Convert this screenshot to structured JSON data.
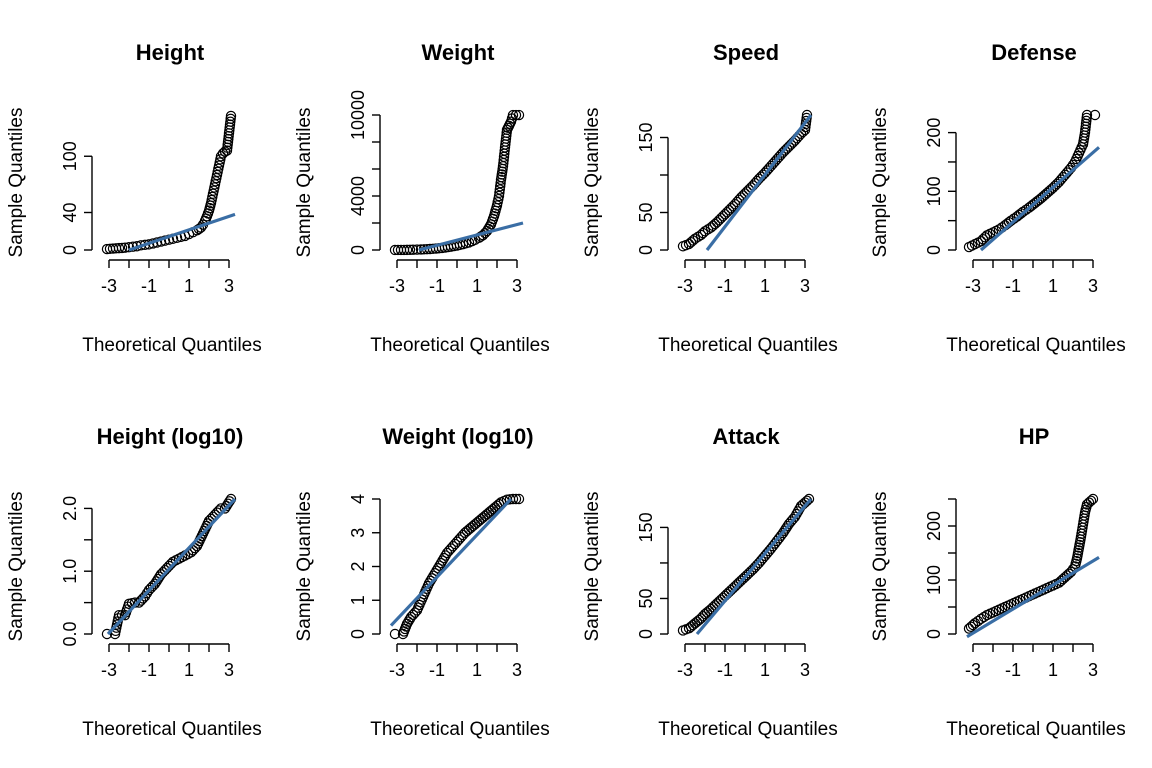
{
  "chart_data": [
    {
      "type": "scatter",
      "title": "Height",
      "xlabel": "Theoretical Quantiles",
      "ylabel": "Sample Quantiles",
      "xlim": [
        -3.2,
        3.3
      ],
      "ylim": [
        0,
        144
      ],
      "yticks": [
        0,
        40,
        100
      ],
      "ytick_labels": [
        "0",
        "40",
        "100"
      ],
      "xticks": [
        -3,
        -2,
        -1,
        0,
        1,
        2,
        3
      ],
      "xtick_labels": [
        "-3",
        "",
        "-1",
        "",
        "1",
        "",
        "3"
      ],
      "ref_line": [
        [
          -2.0,
          0
        ],
        [
          3.3,
          38
        ]
      ],
      "qq_points": [
        [
          -3.1,
          1
        ],
        [
          -2.8,
          1.5
        ],
        [
          -2.5,
          2
        ],
        [
          -2.2,
          2.5
        ],
        [
          -2.0,
          3
        ],
        [
          -1.8,
          3.5
        ],
        [
          -1.6,
          4
        ],
        [
          -1.4,
          5
        ],
        [
          -1.2,
          5.5
        ],
        [
          -1.0,
          6
        ],
        [
          -0.8,
          7
        ],
        [
          -0.6,
          8
        ],
        [
          -0.4,
          9
        ],
        [
          -0.2,
          10
        ],
        [
          0,
          11
        ],
        [
          0.2,
          12
        ],
        [
          0.4,
          13
        ],
        [
          0.6,
          14
        ],
        [
          0.8,
          15
        ],
        [
          1.0,
          17
        ],
        [
          1.2,
          19
        ],
        [
          1.4,
          21
        ],
        [
          1.6,
          24
        ],
        [
          1.7,
          27
        ],
        [
          1.8,
          31
        ],
        [
          1.9,
          36
        ],
        [
          2.0,
          42
        ],
        [
          2.1,
          50
        ],
        [
          2.2,
          60
        ],
        [
          2.3,
          70
        ],
        [
          2.4,
          80
        ],
        [
          2.5,
          90
        ],
        [
          2.6,
          100
        ],
        [
          2.7,
          103
        ],
        [
          2.8,
          105
        ],
        [
          2.9,
          106
        ],
        [
          3.1,
          143
        ]
      ]
    },
    {
      "type": "scatter",
      "title": "Weight",
      "xlabel": "Theoretical Quantiles",
      "ylabel": "Sample Quantiles",
      "xlim": [
        -3.2,
        3.3
      ],
      "ylim": [
        0,
        10000
      ],
      "yticks": [
        0,
        2000,
        4000,
        6000,
        8000,
        10000
      ],
      "ytick_labels": [
        "0",
        "",
        "4000",
        "",
        "",
        "10000"
      ],
      "xticks": [
        -3,
        -2,
        -1,
        0,
        1,
        2,
        3
      ],
      "xtick_labels": [
        "-3",
        "",
        "-1",
        "",
        "1",
        "",
        "3"
      ],
      "ref_line": [
        [
          -1.9,
          0
        ],
        [
          3.3,
          2000
        ]
      ],
      "qq_points": [
        [
          -3.1,
          1
        ],
        [
          -2.8,
          5
        ],
        [
          -2.5,
          10
        ],
        [
          -2.2,
          20
        ],
        [
          -2.0,
          30
        ],
        [
          -1.8,
          40
        ],
        [
          -1.5,
          60
        ],
        [
          -1.2,
          90
        ],
        [
          -0.9,
          130
        ],
        [
          -0.6,
          180
        ],
        [
          -0.3,
          250
        ],
        [
          0,
          330
        ],
        [
          0.3,
          430
        ],
        [
          0.6,
          560
        ],
        [
          0.9,
          750
        ],
        [
          1.1,
          900
        ],
        [
          1.3,
          1100
        ],
        [
          1.5,
          1400
        ],
        [
          1.7,
          1900
        ],
        [
          1.85,
          2500
        ],
        [
          2.0,
          3300
        ],
        [
          2.1,
          4000
        ],
        [
          2.2,
          5200
        ],
        [
          2.3,
          6200
        ],
        [
          2.4,
          7600
        ],
        [
          2.5,
          8900
        ],
        [
          2.6,
          9200
        ],
        [
          2.7,
          9500
        ],
        [
          2.8,
          9990
        ],
        [
          3.1,
          9999
        ]
      ]
    },
    {
      "type": "scatter",
      "title": "Speed",
      "xlabel": "Theoretical Quantiles",
      "ylabel": "Sample Quantiles",
      "xlim": [
        -3.2,
        3.3
      ],
      "ylim": [
        0,
        180
      ],
      "yticks": [
        0,
        50,
        100,
        150
      ],
      "ytick_labels": [
        "0",
        "50",
        "",
        "150"
      ],
      "xticks": [
        -3,
        -2,
        -1,
        0,
        1,
        2,
        3
      ],
      "xtick_labels": [
        "-3",
        "",
        "-1",
        "",
        "1",
        "",
        "3"
      ],
      "ref_line": [
        [
          -1.9,
          0
        ],
        [
          3.3,
          180
        ]
      ],
      "qq_points": [
        [
          -3.1,
          5
        ],
        [
          -2.8,
          8
        ],
        [
          -2.5,
          15
        ],
        [
          -2.2,
          20
        ],
        [
          -2.0,
          25
        ],
        [
          -1.7,
          30
        ],
        [
          -1.4,
          37
        ],
        [
          -1.1,
          45
        ],
        [
          -0.8,
          53
        ],
        [
          -0.5,
          61
        ],
        [
          -0.2,
          70
        ],
        [
          0.1,
          78
        ],
        [
          0.4,
          86
        ],
        [
          0.7,
          95
        ],
        [
          1.0,
          103
        ],
        [
          1.3,
          112
        ],
        [
          1.6,
          121
        ],
        [
          1.9,
          130
        ],
        [
          2.2,
          138
        ],
        [
          2.5,
          146
        ],
        [
          2.8,
          155
        ],
        [
          3.0,
          160
        ],
        [
          3.1,
          180
        ]
      ]
    },
    {
      "type": "scatter",
      "title": "Defense",
      "xlabel": "Theoretical Quantiles",
      "ylabel": "Sample Quantiles",
      "xlim": [
        -3.2,
        3.3
      ],
      "ylim": [
        0,
        230
      ],
      "yticks": [
        0,
        50,
        100,
        150,
        200
      ],
      "ytick_labels": [
        "0",
        "",
        "100",
        "",
        "200"
      ],
      "xticks": [
        -3,
        -2,
        -1,
        0,
        1,
        2,
        3
      ],
      "xtick_labels": [
        "-3",
        "",
        "-1",
        "",
        "1",
        "",
        "3"
      ],
      "ref_line": [
        [
          -2.6,
          0
        ],
        [
          3.3,
          175
        ]
      ],
      "qq_points": [
        [
          -3.2,
          5
        ],
        [
          -2.9,
          10
        ],
        [
          -2.6,
          15
        ],
        [
          -2.3,
          25
        ],
        [
          -2.0,
          30
        ],
        [
          -1.7,
          35
        ],
        [
          -1.4,
          42
        ],
        [
          -1.1,
          50
        ],
        [
          -0.8,
          57
        ],
        [
          -0.5,
          65
        ],
        [
          -0.2,
          72
        ],
        [
          0.1,
          80
        ],
        [
          0.4,
          88
        ],
        [
          0.7,
          97
        ],
        [
          1.0,
          106
        ],
        [
          1.3,
          116
        ],
        [
          1.6,
          128
        ],
        [
          1.9,
          140
        ],
        [
          2.1,
          150
        ],
        [
          2.3,
          165
        ],
        [
          2.5,
          180
        ],
        [
          2.6,
          200
        ],
        [
          2.7,
          230
        ],
        [
          3.1,
          230
        ]
      ]
    },
    {
      "type": "scatter",
      "title": "Height (log10)",
      "xlabel": "Theoretical Quantiles",
      "ylabel": "Sample Quantiles",
      "xlim": [
        -3.2,
        3.3
      ],
      "ylim": [
        0,
        2.15
      ],
      "yticks": [
        0,
        0.5,
        1.0,
        1.5,
        2.0
      ],
      "ytick_labels": [
        "0.0",
        "",
        "1.0",
        "",
        "2.0"
      ],
      "xticks": [
        -3,
        -2,
        -1,
        0,
        1,
        2,
        3
      ],
      "xtick_labels": [
        "-3",
        "",
        "-1",
        "",
        "1",
        "",
        "3"
      ],
      "ref_line": [
        [
          -3.05,
          0
        ],
        [
          3.3,
          2.15
        ]
      ],
      "qq_points": [
        [
          -3.1,
          0
        ],
        [
          -2.7,
          0
        ],
        [
          -2.5,
          0.3
        ],
        [
          -2.2,
          0.3
        ],
        [
          -2.0,
          0.48
        ],
        [
          -1.7,
          0.5
        ],
        [
          -1.5,
          0.5
        ],
        [
          -1.2,
          0.6
        ],
        [
          -1.0,
          0.7
        ],
        [
          -0.7,
          0.8
        ],
        [
          -0.4,
          0.95
        ],
        [
          -0.1,
          1.05
        ],
        [
          0.2,
          1.15
        ],
        [
          0.5,
          1.2
        ],
        [
          0.8,
          1.25
        ],
        [
          1.1,
          1.3
        ],
        [
          1.4,
          1.4
        ],
        [
          1.7,
          1.6
        ],
        [
          2.0,
          1.8
        ],
        [
          2.3,
          1.9
        ],
        [
          2.6,
          2.0
        ],
        [
          2.8,
          2.0
        ],
        [
          3.1,
          2.15
        ]
      ]
    },
    {
      "type": "scatter",
      "title": "Weight (log10)",
      "xlabel": "Theoretical Quantiles",
      "ylabel": "Sample Quantiles",
      "xlim": [
        -3.2,
        3.3
      ],
      "ylim": [
        0,
        4
      ],
      "yticks": [
        0,
        1,
        2,
        3,
        4
      ],
      "ytick_labels": [
        "0",
        "1",
        "2",
        "3",
        "4"
      ],
      "xticks": [
        -3,
        -2,
        -1,
        0,
        1,
        2,
        3
      ],
      "xtick_labels": [
        "-3",
        "",
        "-1",
        "",
        "1",
        "",
        "3"
      ],
      "ref_line": [
        [
          -3.3,
          0.25
        ],
        [
          2.7,
          4
        ]
      ],
      "qq_points": [
        [
          -3.1,
          0
        ],
        [
          -2.7,
          0
        ],
        [
          -2.5,
          0.3
        ],
        [
          -2.3,
          0.5
        ],
        [
          -2.0,
          0.7
        ],
        [
          -1.7,
          1.1
        ],
        [
          -1.4,
          1.5
        ],
        [
          -1.1,
          1.8
        ],
        [
          -0.8,
          2.1
        ],
        [
          -0.5,
          2.4
        ],
        [
          -0.2,
          2.6
        ],
        [
          0.1,
          2.8
        ],
        [
          0.4,
          3.0
        ],
        [
          0.7,
          3.15
        ],
        [
          1.0,
          3.3
        ],
        [
          1.3,
          3.45
        ],
        [
          1.6,
          3.6
        ],
        [
          1.9,
          3.75
        ],
        [
          2.2,
          3.9
        ],
        [
          2.5,
          3.98
        ],
        [
          2.8,
          4.0
        ],
        [
          3.1,
          4.0
        ]
      ]
    },
    {
      "type": "scatter",
      "title": "Attack",
      "xlabel": "Theoretical Quantiles",
      "ylabel": "Sample Quantiles",
      "xlim": [
        -3.2,
        3.3
      ],
      "ylim": [
        0,
        190
      ],
      "yticks": [
        0,
        50,
        100,
        150
      ],
      "ytick_labels": [
        "0",
        "50",
        "",
        "150"
      ],
      "xticks": [
        -3,
        -2,
        -1,
        0,
        1,
        2,
        3
      ],
      "xtick_labels": [
        "-3",
        "",
        "-1",
        "",
        "1",
        "",
        "3"
      ],
      "ref_line": [
        [
          -2.4,
          0
        ],
        [
          3.3,
          190
        ]
      ],
      "qq_points": [
        [
          -3.1,
          5
        ],
        [
          -2.8,
          8
        ],
        [
          -2.5,
          15
        ],
        [
          -2.2,
          22
        ],
        [
          -2.0,
          28
        ],
        [
          -1.7,
          35
        ],
        [
          -1.4,
          43
        ],
        [
          -1.1,
          51
        ],
        [
          -0.8,
          59
        ],
        [
          -0.5,
          67
        ],
        [
          -0.2,
          75
        ],
        [
          0.1,
          83
        ],
        [
          0.4,
          91
        ],
        [
          0.7,
          100
        ],
        [
          1.0,
          110
        ],
        [
          1.3,
          120
        ],
        [
          1.6,
          131
        ],
        [
          1.9,
          142
        ],
        [
          2.2,
          155
        ],
        [
          2.5,
          165
        ],
        [
          2.8,
          180
        ],
        [
          3.0,
          185
        ],
        [
          3.2,
          190
        ]
      ]
    },
    {
      "type": "scatter",
      "title": "HP",
      "xlabel": "Theoretical Quantiles",
      "ylabel": "Sample Quantiles",
      "xlim": [
        -3.2,
        3.3
      ],
      "ylim": [
        0,
        250
      ],
      "yticks": [
        0,
        50,
        100,
        150,
        200,
        250
      ],
      "ytick_labels": [
        "0",
        "",
        "100",
        "",
        "200",
        ""
      ],
      "xticks": [
        -3,
        -2,
        -1,
        0,
        1,
        2,
        3
      ],
      "xtick_labels": [
        "-3",
        "",
        "-1",
        "",
        "1",
        "",
        "3"
      ],
      "ref_line": [
        [
          -3.3,
          -5
        ],
        [
          3.3,
          142
        ]
      ],
      "qq_points": [
        [
          -3.2,
          10
        ],
        [
          -2.9,
          20
        ],
        [
          -2.6,
          28
        ],
        [
          -2.3,
          35
        ],
        [
          -2.0,
          40
        ],
        [
          -1.7,
          45
        ],
        [
          -1.4,
          50
        ],
        [
          -1.1,
          55
        ],
        [
          -0.8,
          60
        ],
        [
          -0.5,
          65
        ],
        [
          -0.2,
          70
        ],
        [
          0.1,
          75
        ],
        [
          0.4,
          80
        ],
        [
          0.7,
          85
        ],
        [
          1.0,
          90
        ],
        [
          1.3,
          95
        ],
        [
          1.6,
          105
        ],
        [
          1.9,
          115
        ],
        [
          2.1,
          125
        ],
        [
          2.2,
          140
        ],
        [
          2.3,
          160
        ],
        [
          2.4,
          180
        ],
        [
          2.6,
          225
        ],
        [
          2.7,
          240
        ],
        [
          3.0,
          250
        ]
      ]
    }
  ]
}
